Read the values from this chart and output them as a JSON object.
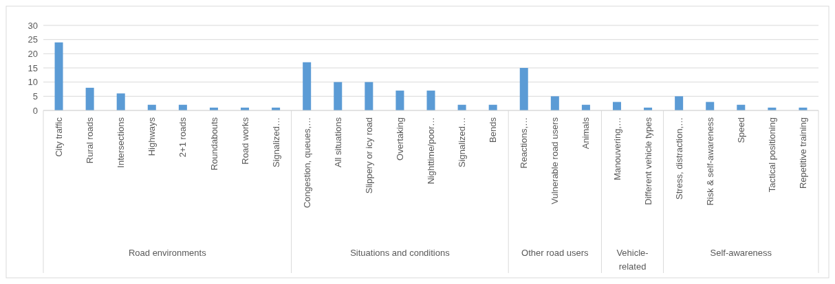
{
  "chart_data": {
    "type": "bar",
    "categories": [
      "City traffic",
      "Rural roads",
      "Intersections",
      "Highways",
      "2+1 roads",
      "Roundabouts",
      "Road works",
      "Signalized…",
      "Congestion, queues,…",
      "All situations",
      "Slippery or icy road",
      "Overtaking",
      "Nighttime/poor…",
      "Signalized…",
      "Bends",
      "Reactions,…",
      "Vulnerable road users",
      "Animals",
      "Manouvering,…",
      "Different vehicle types",
      "Stress, distraction,…",
      "Risk & self-awareness",
      "Speed",
      "Tactical positioning",
      "Repetitive training"
    ],
    "values": [
      24,
      8,
      6,
      2,
      2,
      1,
      1,
      1,
      17,
      10,
      10,
      7,
      7,
      2,
      2,
      15,
      5,
      2,
      3,
      1,
      5,
      3,
      2,
      1,
      1
    ],
    "color": "#5b9bd5",
    "ylim": [
      0,
      30
    ],
    "yticks": [
      0,
      5,
      10,
      15,
      20,
      25,
      30
    ],
    "grid": "y",
    "annotations": [
      "Road environments",
      "Situations and conditions",
      "Other road users",
      "Vehicle-related",
      "Self-awareness"
    ]
  }
}
